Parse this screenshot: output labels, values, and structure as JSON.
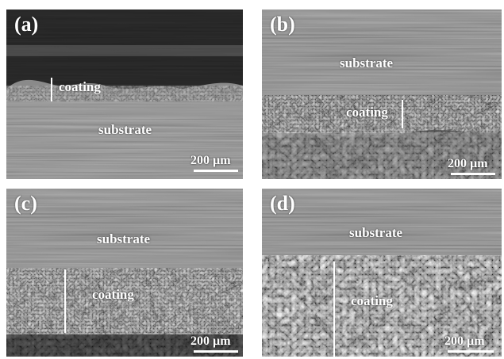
{
  "panels": [
    {
      "label": "(a)",
      "top_text": "coating",
      "bottom_text": "substrate",
      "scale": "200 µm"
    },
    {
      "label": "(b)",
      "top_text": "substrate",
      "bottom_text": "coating",
      "scale": "200 µm"
    },
    {
      "label": "(c)",
      "top_text": "substrate",
      "bottom_text": "coating",
      "scale": "200 µm"
    },
    {
      "label": "(d)",
      "top_text": "substrate",
      "bottom_text": "coating",
      "scale": "200 µm"
    }
  ]
}
